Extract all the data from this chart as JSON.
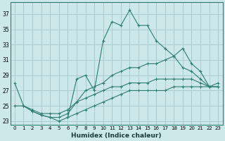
{
  "xlabel": "Humidex (Indice chaleur)",
  "background_color": "#cce8e8",
  "grid_color": "#aacccc",
  "line_color": "#2e7d6e",
  "xlim": [
    -0.5,
    23.5
  ],
  "ylim": [
    22.5,
    38.5
  ],
  "yticks": [
    23,
    25,
    27,
    29,
    31,
    33,
    35,
    37
  ],
  "xticks": [
    0,
    1,
    2,
    3,
    4,
    5,
    6,
    7,
    8,
    9,
    10,
    11,
    12,
    13,
    14,
    15,
    16,
    17,
    18,
    19,
    20,
    21,
    22,
    23
  ],
  "series": [
    {
      "x": [
        0,
        1,
        2,
        3,
        4,
        5,
        6,
        7,
        8,
        9,
        10,
        11,
        12,
        13,
        14,
        15,
        16,
        17,
        18,
        19,
        20,
        21,
        22
      ],
      "y": [
        28,
        25,
        24.3,
        23.8,
        23.5,
        23.0,
        23.5,
        28.5,
        29.0,
        27.0,
        33.5,
        36.0,
        35.5,
        37.5,
        35.5,
        35.5,
        33.5,
        32.5,
        31.5,
        30.0,
        29.5,
        28.5,
        27.5
      ]
    },
    {
      "x": [
        1,
        2,
        3,
        4,
        5,
        6,
        7,
        8,
        9,
        10,
        11,
        12,
        13,
        14,
        15,
        16,
        17,
        18,
        19,
        20,
        21,
        22,
        23
      ],
      "y": [
        25,
        24.3,
        23.8,
        23.5,
        23.5,
        24.0,
        25.5,
        27.0,
        27.5,
        28.0,
        29.0,
        29.5,
        30.0,
        30.0,
        30.5,
        30.5,
        31.0,
        31.5,
        32.5,
        30.5,
        29.5,
        27.5,
        27.5
      ]
    },
    {
      "x": [
        0,
        1,
        2,
        3,
        4,
        5,
        6,
        7,
        8,
        9,
        10,
        11,
        12,
        13,
        14,
        15,
        16,
        17,
        18,
        19,
        20,
        21,
        22,
        23
      ],
      "y": [
        25.0,
        25.0,
        24.5,
        24.0,
        24.0,
        24.0,
        24.5,
        25.5,
        26.0,
        26.5,
        27.0,
        27.5,
        27.5,
        28.0,
        28.0,
        28.0,
        28.5,
        28.5,
        28.5,
        28.5,
        28.5,
        28.0,
        27.5,
        28.0
      ]
    },
    {
      "x": [
        6,
        7,
        8,
        9,
        10,
        11,
        12,
        13,
        14,
        15,
        16,
        17,
        18,
        19,
        20,
        21,
        22,
        23
      ],
      "y": [
        23.5,
        24.0,
        24.5,
        25.0,
        25.5,
        26.0,
        26.5,
        27.0,
        27.0,
        27.0,
        27.0,
        27.0,
        27.5,
        27.5,
        27.5,
        27.5,
        27.5,
        27.5
      ]
    }
  ]
}
